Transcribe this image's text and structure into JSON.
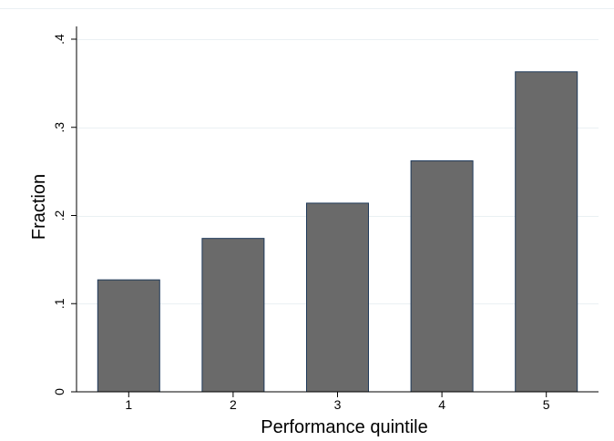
{
  "chart_data": {
    "type": "bar",
    "categories": [
      "1",
      "2",
      "3",
      "4",
      "5"
    ],
    "values": [
      0.127,
      0.174,
      0.214,
      0.262,
      0.363
    ],
    "title": "",
    "xlabel": "Performance quintile",
    "ylabel": "Fraction",
    "ylim": [
      0,
      0.4
    ],
    "yticks": [
      0,
      0.1,
      0.2,
      0.3,
      0.4
    ],
    "yticklabels": [
      "0",
      ".1",
      ".2",
      ".3",
      ".4"
    ],
    "grid": true,
    "colors": {
      "bar_fill": "#6a6a6a",
      "bar_edge": "#1f3a5a",
      "grid": "#eaf0f3",
      "axis": "#000000"
    }
  }
}
